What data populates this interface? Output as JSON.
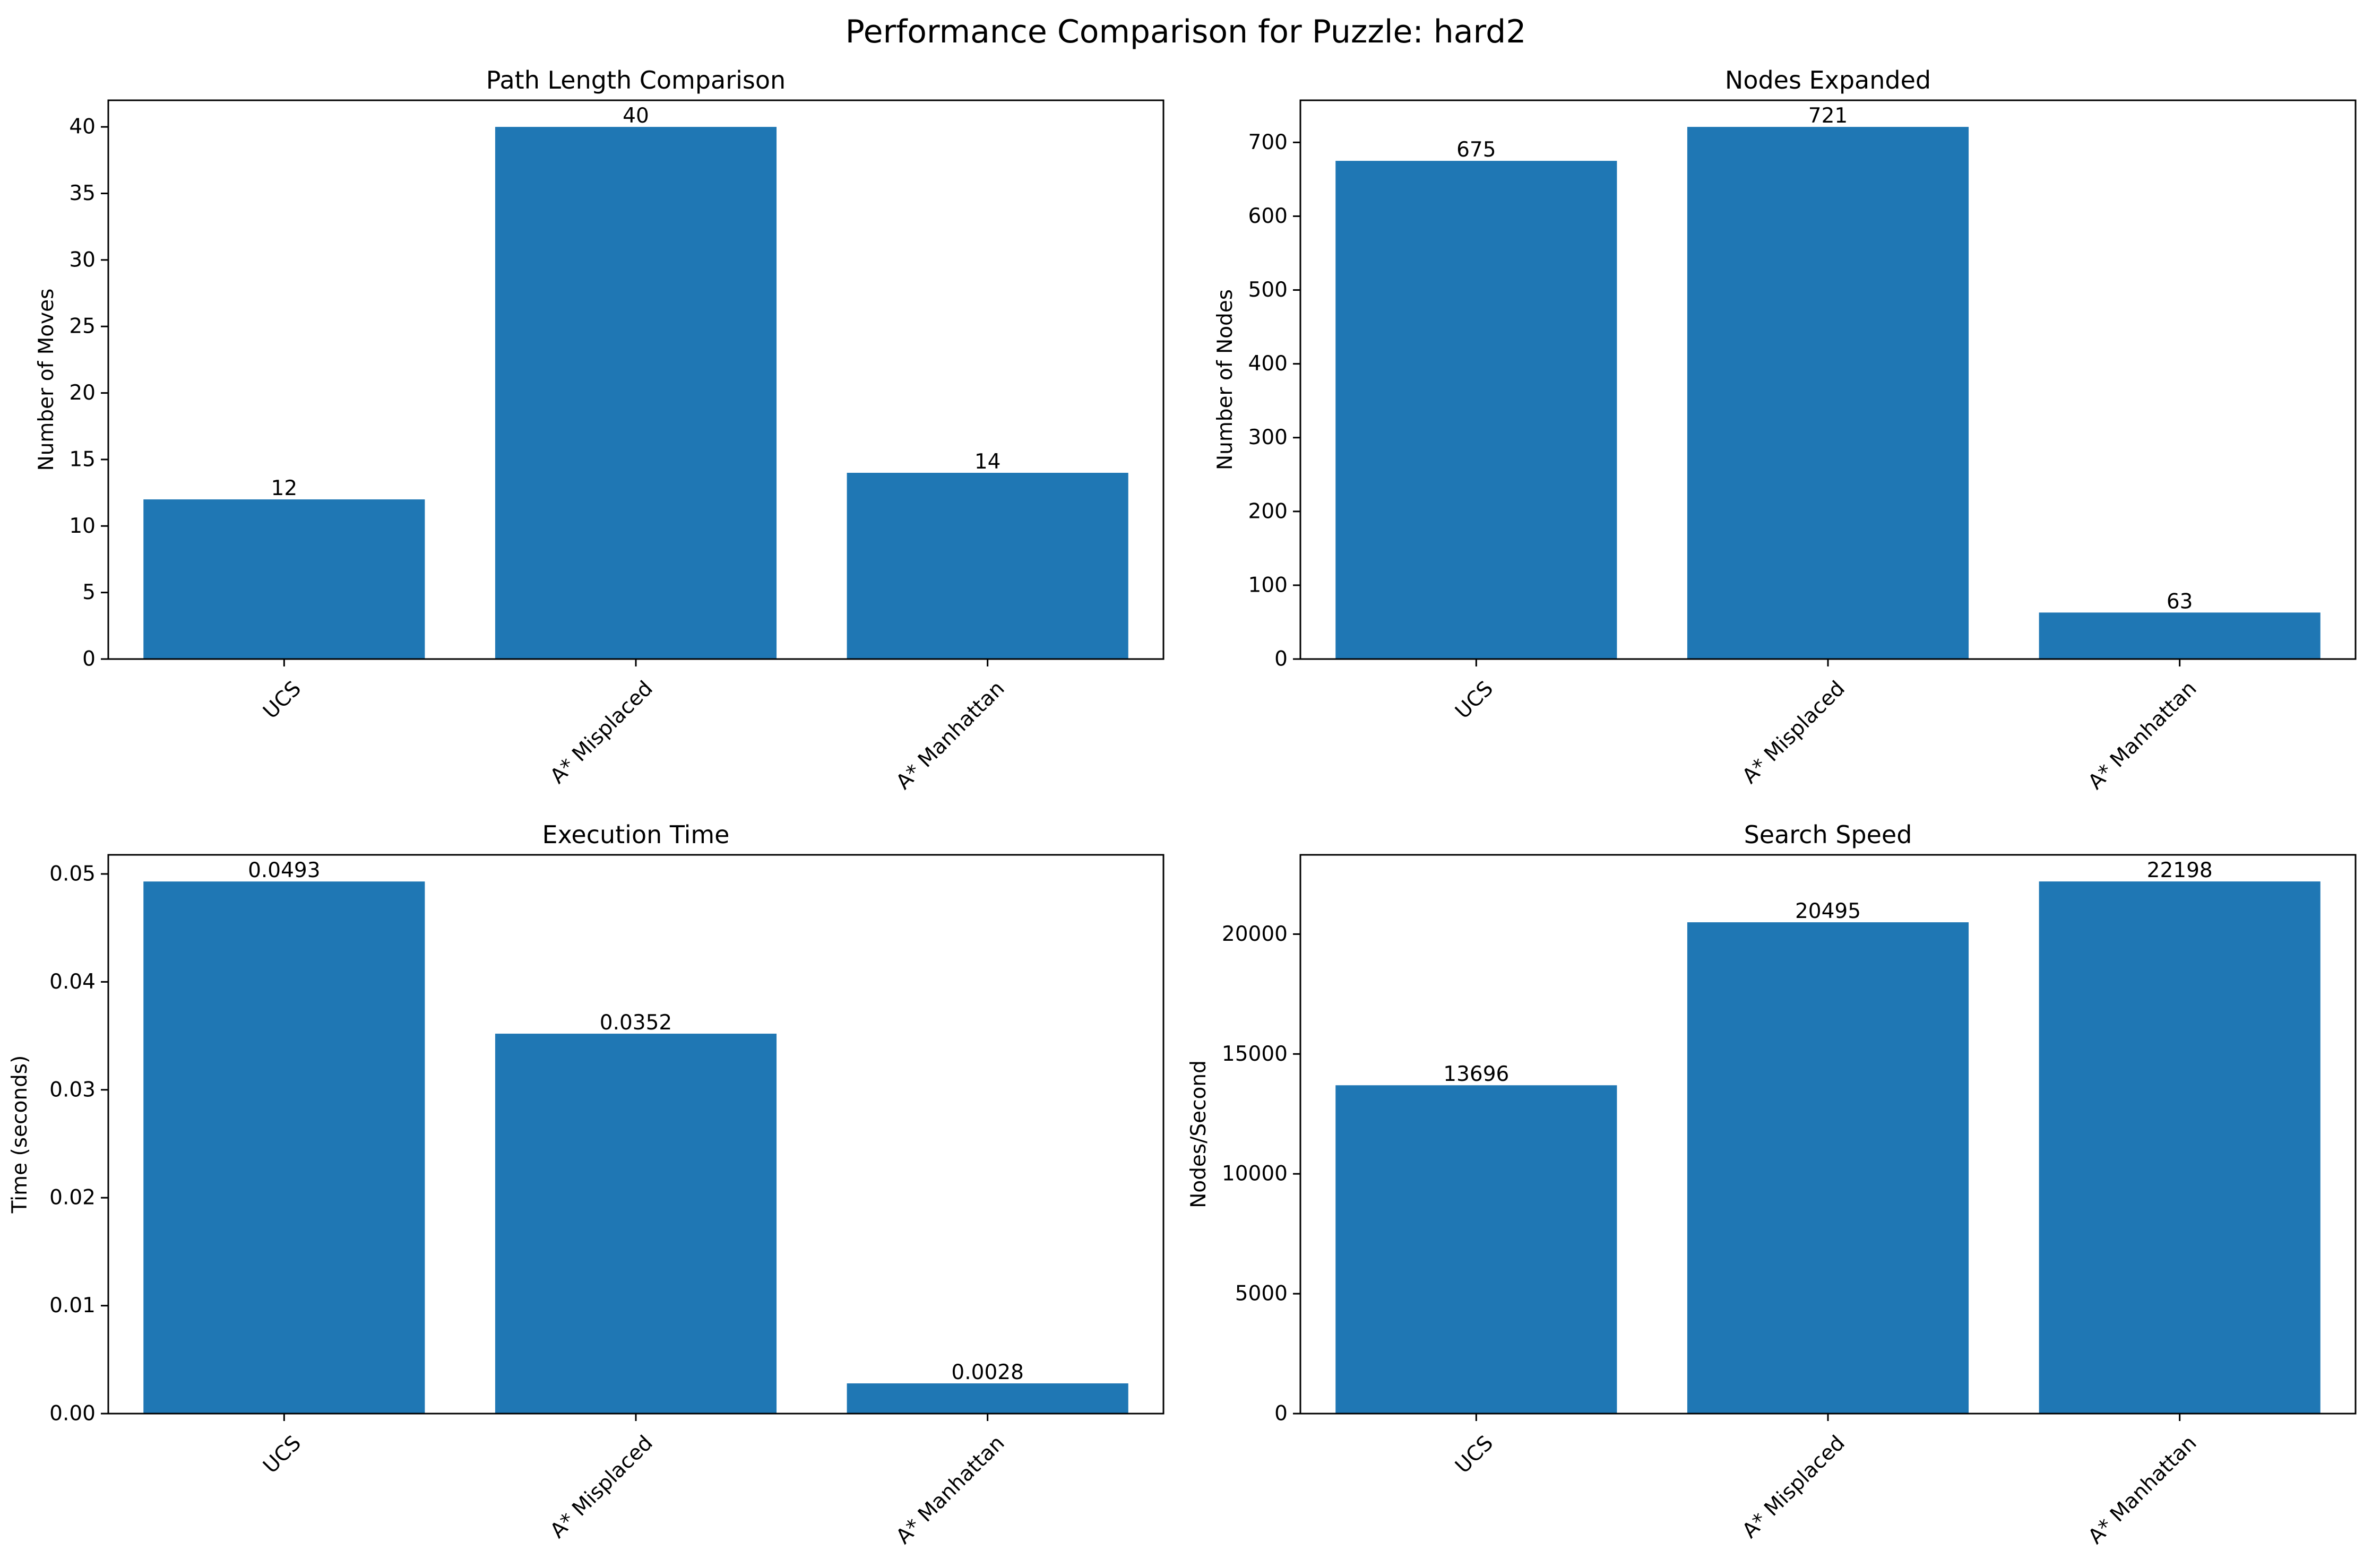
{
  "figure": {
    "suptitle": "Performance Comparison for Puzzle: hard2",
    "bar_color": "#1f77b4"
  },
  "chart_data": [
    {
      "type": "bar",
      "title": "Path Length Comparison",
      "xlabel": "",
      "ylabel": "Number of Moves",
      "categories": [
        "UCS",
        "A* Misplaced",
        "A* Manhattan"
      ],
      "values": [
        12,
        40,
        14
      ],
      "value_labels": [
        "12",
        "40",
        "14"
      ],
      "ylim": [
        0,
        42
      ],
      "yticks": [
        0,
        5,
        10,
        15,
        20,
        25,
        30,
        35,
        40
      ],
      "ytick_labels": [
        "0",
        "5",
        "10",
        "15",
        "20",
        "25",
        "30",
        "35",
        "40"
      ],
      "grid": false,
      "legend": null
    },
    {
      "type": "bar",
      "title": "Nodes Expanded",
      "xlabel": "",
      "ylabel": "Number of Nodes",
      "categories": [
        "UCS",
        "A* Misplaced",
        "A* Manhattan"
      ],
      "values": [
        675,
        721,
        63
      ],
      "value_labels": [
        "675",
        "721",
        "63"
      ],
      "ylim": [
        0,
        757.05
      ],
      "yticks": [
        0,
        100,
        200,
        300,
        400,
        500,
        600,
        700
      ],
      "ytick_labels": [
        "0",
        "100",
        "200",
        "300",
        "400",
        "500",
        "600",
        "700"
      ],
      "grid": false,
      "legend": null
    },
    {
      "type": "bar",
      "title": "Execution Time",
      "xlabel": "",
      "ylabel": "Time (seconds)",
      "categories": [
        "UCS",
        "A* Misplaced",
        "A* Manhattan"
      ],
      "values": [
        0.0493,
        0.0352,
        0.0028
      ],
      "value_labels": [
        "0.0493",
        "0.0352",
        "0.0028"
      ],
      "ylim": [
        0,
        0.05177
      ],
      "yticks": [
        0,
        0.01,
        0.02,
        0.03,
        0.04,
        0.05
      ],
      "ytick_labels": [
        "0.00",
        "0.01",
        "0.02",
        "0.03",
        "0.04",
        "0.05"
      ],
      "grid": false,
      "legend": null
    },
    {
      "type": "bar",
      "title": "Search Speed",
      "xlabel": "",
      "ylabel": "Nodes/Second",
      "categories": [
        "UCS",
        "A* Misplaced",
        "A* Manhattan"
      ],
      "values": [
        13696,
        20495,
        22198
      ],
      "value_labels": [
        "13696",
        "20495",
        "22198"
      ],
      "ylim": [
        0,
        23308
      ],
      "yticks": [
        0,
        5000,
        10000,
        15000,
        20000
      ],
      "ytick_labels": [
        "0",
        "5000",
        "10000",
        "15000",
        "20000"
      ],
      "grid": false,
      "legend": null
    }
  ]
}
